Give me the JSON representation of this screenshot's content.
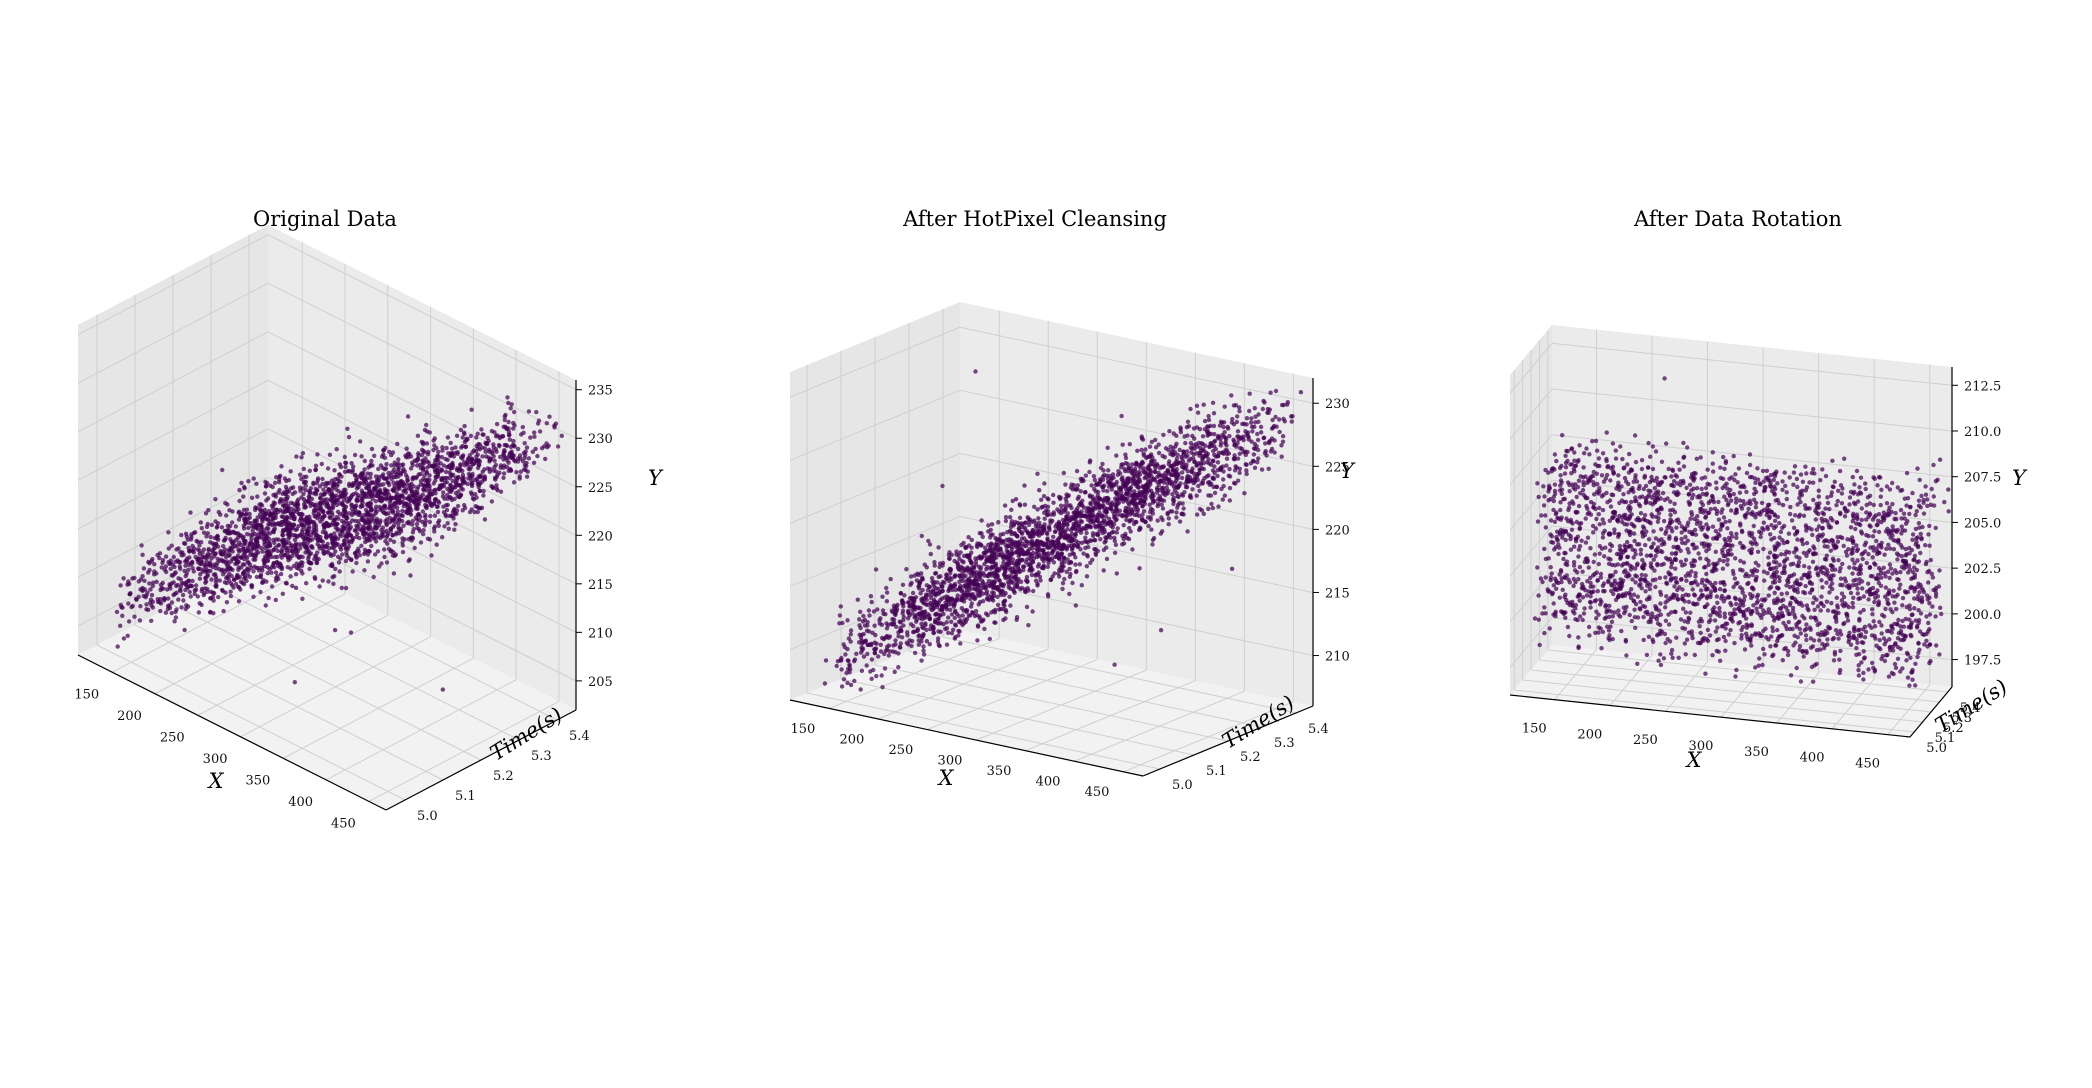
{
  "chart_data": [
    {
      "type": "scatter",
      "title": "Original Data",
      "xlabel": "X",
      "ylabel": "Y",
      "zlabel": "Time(s)",
      "x_ticks": [
        "150",
        "200",
        "250",
        "300",
        "350",
        "400",
        "450"
      ],
      "t_ticks": [
        "5.0",
        "5.1",
        "5.2",
        "5.3",
        "5.4"
      ],
      "y_ticks": [
        "205",
        "210",
        "215",
        "220",
        "225",
        "230",
        "235"
      ],
      "x_range": [
        110,
        470
      ],
      "t_range": [
        4.95,
        5.45
      ],
      "y_range": [
        202,
        236
      ],
      "color": "#440154",
      "point_cloud": "diagonal band, Y rising with X (~207 to ~230)",
      "grid": true
    },
    {
      "type": "scatter",
      "title": "After HotPixel Cleansing",
      "xlabel": "X",
      "ylabel": "Y",
      "zlabel": "Time(s)",
      "x_ticks": [
        "150",
        "200",
        "250",
        "300",
        "350",
        "400",
        "450"
      ],
      "t_ticks": [
        "5.0",
        "5.1",
        "5.2",
        "5.3",
        "5.4"
      ],
      "y_ticks": [
        "210",
        "215",
        "220",
        "225",
        "230"
      ],
      "x_range": [
        110,
        470
      ],
      "t_range": [
        4.95,
        5.45
      ],
      "y_range": [
        206,
        232
      ],
      "color": "#440154",
      "point_cloud": "diagonal band, Y rising with X (~208 to ~230)",
      "grid": true
    },
    {
      "type": "scatter",
      "title": "After Data Rotation",
      "xlabel": "X",
      "ylabel": "Y",
      "zlabel": "Time(s)",
      "x_ticks": [
        "150",
        "200",
        "250",
        "300",
        "350",
        "400",
        "450"
      ],
      "t_ticks": [
        "5.0",
        "5.1",
        "5.2",
        "5.3",
        "5.4"
      ],
      "y_ticks": [
        "197.5",
        "200.0",
        "202.5",
        "205.0",
        "207.5",
        "210.0",
        "212.5"
      ],
      "x_range": [
        110,
        470
      ],
      "t_range": [
        4.95,
        5.45
      ],
      "y_range": [
        196,
        213.5
      ],
      "color": "#440154",
      "point_cloud": "flat slab, Y ~198 to ~208 independent of X",
      "grid": true
    }
  ]
}
